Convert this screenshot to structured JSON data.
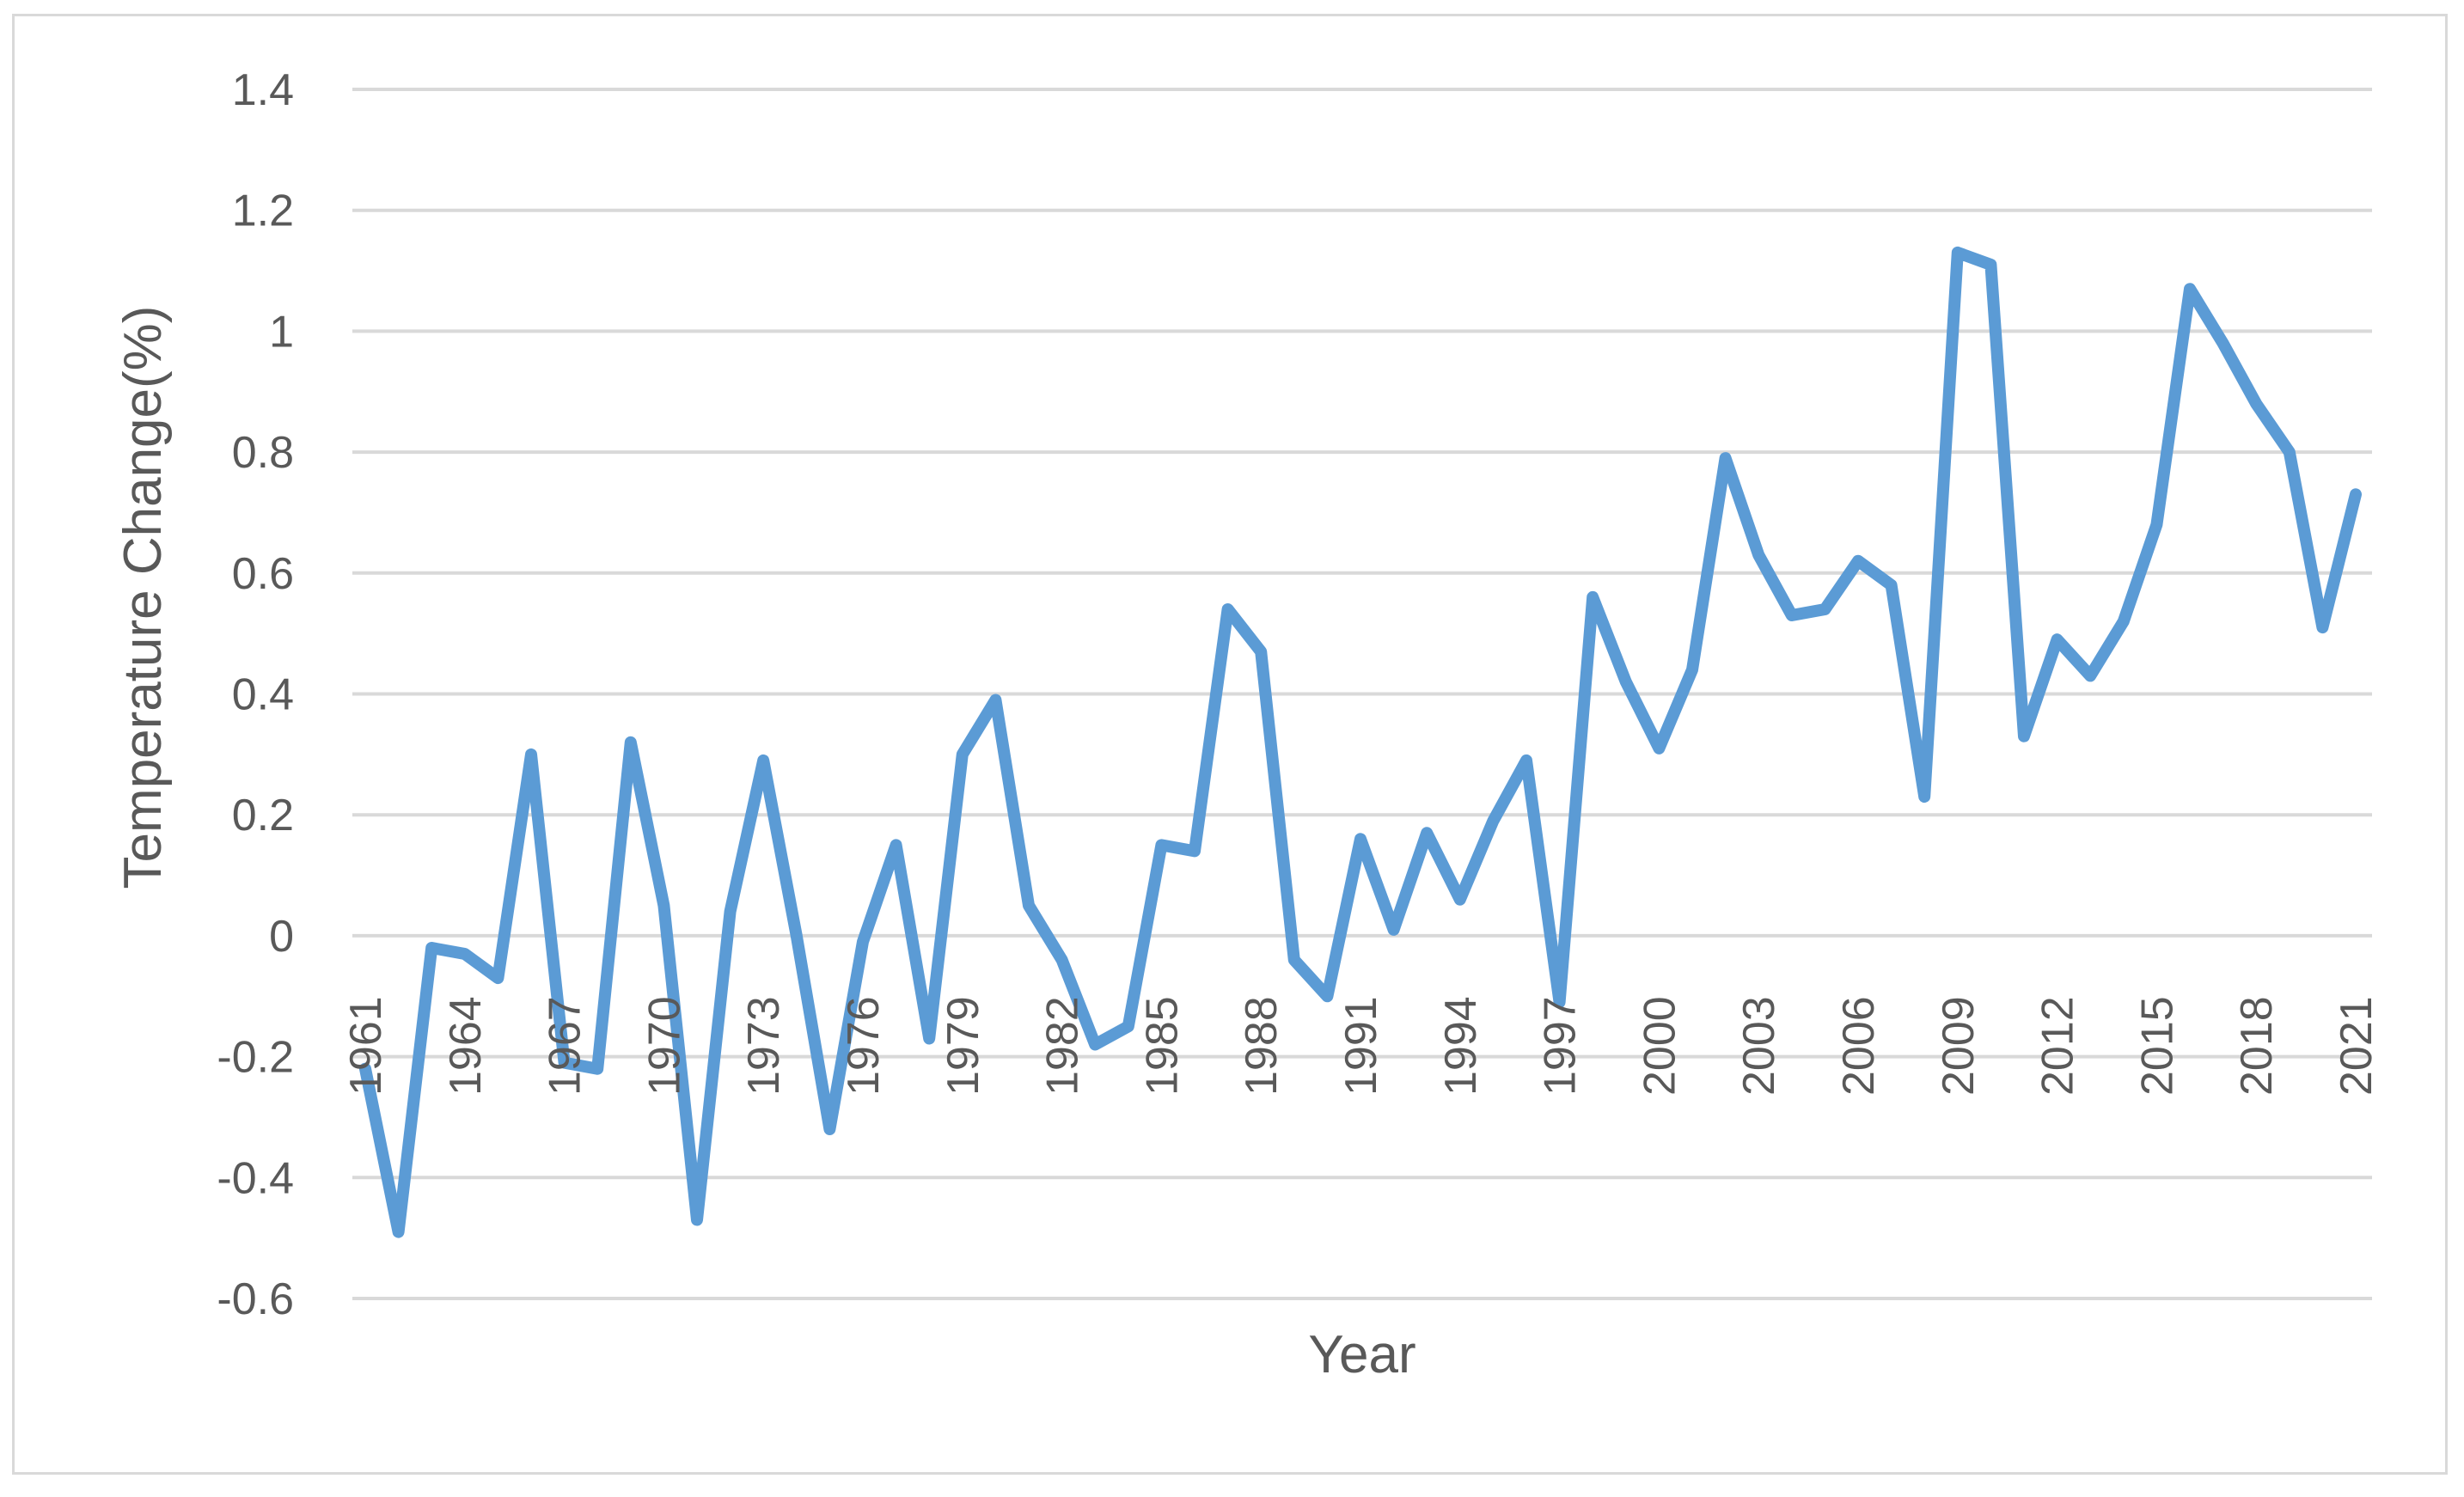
{
  "chart_data": {
    "type": "line",
    "title": "",
    "xlabel": "Year",
    "ylabel": "Temperature Change(%)",
    "ylim": [
      -0.6,
      1.4
    ],
    "yticks": [
      "-0.6",
      "-0.4",
      "-0.2",
      "0",
      "0.2",
      "0.4",
      "0.6",
      "0.8",
      "1",
      "1.2",
      "1.4"
    ],
    "ytick_values": [
      -0.6,
      -0.4,
      -0.2,
      0,
      0.2,
      0.4,
      0.6,
      0.8,
      1.0,
      1.2,
      1.4
    ],
    "xtick_labels": [
      "1961",
      "1964",
      "1967",
      "1970",
      "1973",
      "1976",
      "1979",
      "1982",
      "1985",
      "1988",
      "1991",
      "1994",
      "1997",
      "2000",
      "2003",
      "2006",
      "2009",
      "2012",
      "2015",
      "2018",
      "2021"
    ],
    "grid": true,
    "legend": "none",
    "line_color": "#5b9bd5",
    "series": [
      {
        "x": [
          1961,
          1962,
          1963,
          1964,
          1965,
          1966,
          1967,
          1968,
          1969,
          1970,
          1971,
          1972,
          1973,
          1974,
          1975,
          1976,
          1977,
          1978,
          1979,
          1980,
          1981,
          1982,
          1983,
          1984,
          1985,
          1986,
          1987,
          1988,
          1989,
          1990,
          1991,
          1992,
          1993,
          1994,
          1995,
          1996,
          1997,
          1998,
          1999,
          2000,
          2001,
          2002,
          2003,
          2004,
          2005,
          2006,
          2007,
          2008,
          2009,
          2010,
          2011,
          2012,
          2013,
          2014,
          2015,
          2016,
          2017,
          2018,
          2019,
          2020,
          2021
        ],
        "values": [
          -0.22,
          -0.49,
          -0.02,
          -0.03,
          -0.07,
          0.3,
          -0.21,
          -0.22,
          0.32,
          0.05,
          -0.47,
          0.04,
          0.29,
          0.0,
          -0.32,
          -0.01,
          0.15,
          -0.17,
          0.3,
          0.39,
          0.05,
          -0.04,
          -0.18,
          -0.15,
          0.15,
          0.14,
          0.54,
          0.47,
          -0.04,
          -0.1,
          0.16,
          0.01,
          0.17,
          0.06,
          0.19,
          0.29,
          -0.11,
          0.56,
          0.42,
          0.31,
          0.44,
          0.79,
          0.63,
          0.53,
          0.54,
          0.62,
          0.58,
          0.23,
          1.13,
          1.11,
          0.33,
          0.49,
          0.43,
          0.52,
          0.68,
          1.07,
          0.98,
          0.88,
          0.8,
          0.51,
          0.73
        ]
      }
    ]
  }
}
